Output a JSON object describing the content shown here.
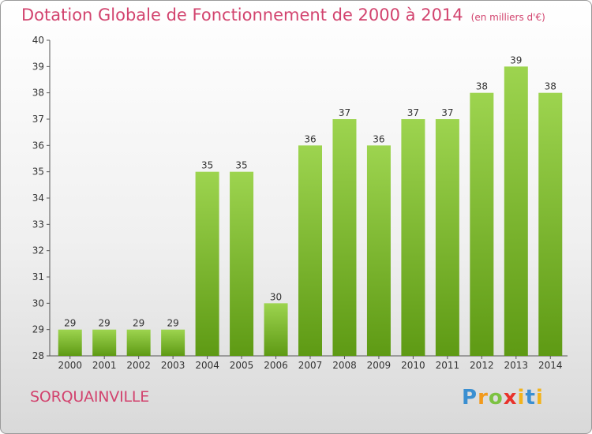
{
  "header": {
    "title": "Dotation Globale de Fonctionnement de 2000 à 2014",
    "subtitle": "(en milliers d'€)"
  },
  "footer": {
    "commune": "SORQUAINVILLE",
    "brand": "Proxiti"
  },
  "colors": {
    "title": "#d2436e",
    "bar_top": "#9dd44f",
    "bar_bottom": "#5e9a14"
  },
  "chart_data": {
    "type": "bar",
    "title": "Dotation Globale de Fonctionnement de 2000 à 2014",
    "subtitle": "(en milliers d'€)",
    "xlabel": "",
    "ylabel": "",
    "categories": [
      "2000",
      "2001",
      "2002",
      "2003",
      "2004",
      "2005",
      "2006",
      "2007",
      "2008",
      "2009",
      "2010",
      "2011",
      "2012",
      "2013",
      "2014"
    ],
    "values": [
      29,
      29,
      29,
      29,
      35,
      35,
      30,
      36,
      37,
      36,
      37,
      37,
      38,
      39,
      38
    ],
    "ylim": [
      28,
      40
    ],
    "yticks": [
      28,
      29,
      30,
      31,
      32,
      33,
      34,
      35,
      36,
      37,
      38,
      39,
      40
    ],
    "grid": false,
    "legend": "none"
  }
}
